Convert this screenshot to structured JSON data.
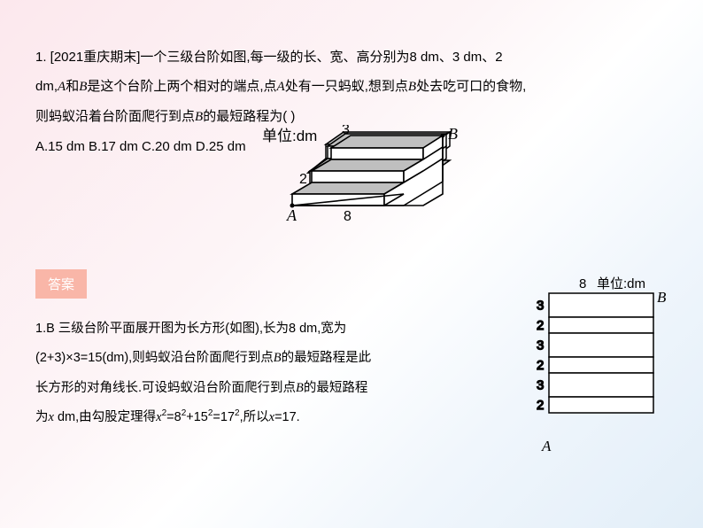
{
  "question": {
    "line1_pre": "1. [2021重庆期末]一个三级台阶如图,每一级的长、宽、高分别为8 dm、3 dm、2",
    "line2_pre": "dm,",
    "A": "A",
    "line2_mid": "和",
    "B": "B",
    "line2_post": "是这个台阶上两个相对的端点,点",
    "A2": "A",
    "line2_after": "处有一只蚂蚁,想到点",
    "B2": "B",
    "line2_end": "处去吃可口的食物,",
    "line3_pre": "则蚂蚁沿着台阶面爬行到点",
    "B3": "B",
    "line3_post": "的最短路程为(        )",
    "choices": "A.15 dm B.17 dm C.20 dm D.25 dm"
  },
  "steps_diagram": {
    "unit_label": "单位:dm",
    "label_3": "3",
    "label_2": "2",
    "label_8": "8",
    "label_A": "A",
    "label_B": "B",
    "colors": {
      "fill_shade": "#c0c0c0",
      "fill_light": "#ffffff",
      "stroke": "#000000"
    }
  },
  "answer_label": "答案",
  "answer": {
    "l1_a": "1.B    三级台阶平面展开图为长方形(如图),长为8 dm,宽为",
    "l2_a": "(2+3)×3=15(dm),则蚂蚁沿台阶面爬行到点",
    "l2_B": "B",
    "l2_b": "的最短路程是此",
    "l3_a": "长方形的对角线长.可设蚂蚁沿台阶面爬行到点",
    "l3_B": "B",
    "l3_b": "的最短路程",
    "l4_a": "为",
    "l4_x": "x",
    "l4_b": " dm,由勾股定理得",
    "l4_x2": "x",
    "l4_eq": "=8",
    "l4_plus": "+15",
    "l4_eq2": "=17",
    "l4_end": ",所以",
    "l4_x3": "x",
    "l4_final": "=17."
  },
  "unfold_diagram": {
    "unit_label": "单位:dm",
    "label_8": "8",
    "label_A": "A",
    "label_B": "B",
    "rows": [
      "3",
      "2",
      "3",
      "2",
      "3",
      "2"
    ],
    "colors": {
      "stroke": "#000000",
      "fill": "#ffffff"
    }
  }
}
